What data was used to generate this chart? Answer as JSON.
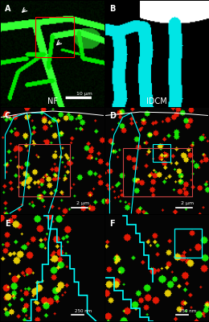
{
  "fig_width": 2.6,
  "fig_height": 4.0,
  "dpi": 100,
  "background": "#000000",
  "panel_labels": [
    "A",
    "B",
    "C",
    "D",
    "E",
    "F"
  ],
  "label_color": "#ffffff",
  "top_labels": [
    "NF",
    "IDCM"
  ],
  "scale_bars": {
    "AB": "10 μm",
    "CD": "2 μm",
    "EF": "250 nm"
  }
}
